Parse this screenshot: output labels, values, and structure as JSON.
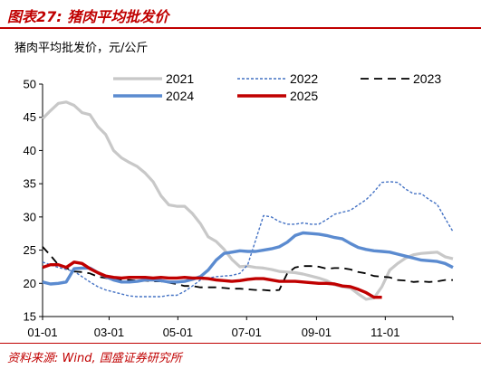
{
  "header": {
    "title": "图表27:  猪肉平均批发价"
  },
  "footer": {
    "source": "资料来源: Wind, 国盛证券研究所"
  },
  "chart_data": {
    "type": "line",
    "unit_label": "猪肉平均批发价，元/公斤",
    "x_tick_labels": [
      "01-01",
      "03-01",
      "05-01",
      "07-01",
      "09-01",
      "11-01"
    ],
    "y_ticks": [
      15,
      20,
      25,
      30,
      35,
      40,
      45,
      50
    ],
    "ylim": [
      15,
      50
    ],
    "x_domain": [
      "01-01",
      "12-31"
    ],
    "grid": false,
    "legend_position": "top",
    "series": [
      {
        "name": "2021",
        "color": "#c8c8c8",
        "style": "solid",
        "points": [
          [
            "01-01",
            44.8
          ],
          [
            "01-08",
            46.0
          ],
          [
            "01-15",
            47.1
          ],
          [
            "01-22",
            47.3
          ],
          [
            "01-29",
            46.8
          ],
          [
            "02-05",
            45.7
          ],
          [
            "02-12",
            45.4
          ],
          [
            "02-19",
            43.6
          ],
          [
            "02-26",
            42.4
          ],
          [
            "03-05",
            40.0
          ],
          [
            "03-12",
            38.9
          ],
          [
            "03-19",
            38.2
          ],
          [
            "03-26",
            37.6
          ],
          [
            "04-02",
            36.6
          ],
          [
            "04-09",
            35.3
          ],
          [
            "04-16",
            33.2
          ],
          [
            "04-23",
            31.8
          ],
          [
            "04-30",
            31.6
          ],
          [
            "05-07",
            31.6
          ],
          [
            "05-14",
            30.5
          ],
          [
            "05-21",
            29.0
          ],
          [
            "05-28",
            27.0
          ],
          [
            "06-04",
            26.3
          ],
          [
            "06-11",
            25.1
          ],
          [
            "06-18",
            23.6
          ],
          [
            "06-25",
            22.5
          ],
          [
            "07-02",
            22.6
          ],
          [
            "07-09",
            22.4
          ],
          [
            "07-16",
            22.3
          ],
          [
            "07-23",
            22.1
          ],
          [
            "07-30",
            21.8
          ],
          [
            "08-06",
            21.7
          ],
          [
            "08-13",
            21.6
          ],
          [
            "08-20",
            21.4
          ],
          [
            "08-27",
            21.1
          ],
          [
            "09-03",
            20.8
          ],
          [
            "09-10",
            20.4
          ],
          [
            "09-17",
            19.8
          ],
          [
            "09-24",
            19.5
          ],
          [
            "10-01",
            19.3
          ],
          [
            "10-08",
            18.4
          ],
          [
            "10-15",
            17.6
          ],
          [
            "10-22",
            17.8
          ],
          [
            "10-29",
            19.5
          ],
          [
            "11-05",
            22.0
          ],
          [
            "11-12",
            23.0
          ],
          [
            "11-19",
            23.8
          ],
          [
            "11-26",
            24.3
          ],
          [
            "12-03",
            24.5
          ],
          [
            "12-10",
            24.6
          ],
          [
            "12-17",
            24.7
          ],
          [
            "12-24",
            24.0
          ],
          [
            "12-31",
            23.7
          ]
        ]
      },
      {
        "name": "2022",
        "color": "#4472c4",
        "style": "dotted",
        "points": [
          [
            "01-01",
            23.2
          ],
          [
            "01-08",
            22.8
          ],
          [
            "01-15",
            22.4
          ],
          [
            "01-22",
            22.1
          ],
          [
            "01-29",
            21.8
          ],
          [
            "02-05",
            21.0
          ],
          [
            "02-12",
            20.2
          ],
          [
            "02-19",
            19.5
          ],
          [
            "02-26",
            19.0
          ],
          [
            "03-05",
            18.7
          ],
          [
            "03-12",
            18.4
          ],
          [
            "03-19",
            18.1
          ],
          [
            "03-26",
            18.0
          ],
          [
            "04-02",
            18.0
          ],
          [
            "04-09",
            18.0
          ],
          [
            "04-16",
            18.0
          ],
          [
            "04-23",
            18.2
          ],
          [
            "04-30",
            18.2
          ],
          [
            "05-07",
            18.8
          ],
          [
            "05-14",
            19.6
          ],
          [
            "05-21",
            20.5
          ],
          [
            "05-28",
            20.8
          ],
          [
            "06-04",
            21.0
          ],
          [
            "06-11",
            21.1
          ],
          [
            "06-18",
            21.2
          ],
          [
            "06-25",
            21.5
          ],
          [
            "07-02",
            22.8
          ],
          [
            "07-09",
            26.5
          ],
          [
            "07-16",
            30.2
          ],
          [
            "07-23",
            30.0
          ],
          [
            "07-30",
            29.3
          ],
          [
            "08-06",
            28.9
          ],
          [
            "08-13",
            28.9
          ],
          [
            "08-20",
            29.1
          ],
          [
            "08-27",
            28.9
          ],
          [
            "09-03",
            28.9
          ],
          [
            "09-10",
            29.6
          ],
          [
            "09-17",
            30.4
          ],
          [
            "09-24",
            30.7
          ],
          [
            "10-01",
            31.0
          ],
          [
            "10-08",
            31.8
          ],
          [
            "10-15",
            32.6
          ],
          [
            "10-22",
            33.8
          ],
          [
            "10-29",
            35.2
          ],
          [
            "11-05",
            35.3
          ],
          [
            "11-12",
            35.2
          ],
          [
            "11-19",
            34.2
          ],
          [
            "11-26",
            33.5
          ],
          [
            "12-03",
            33.5
          ],
          [
            "12-10",
            32.6
          ],
          [
            "12-17",
            31.9
          ],
          [
            "12-24",
            29.8
          ],
          [
            "12-31",
            27.8
          ]
        ]
      },
      {
        "name": "2023",
        "color": "#000000",
        "style": "dashed",
        "points": [
          [
            "01-01",
            25.5
          ],
          [
            "01-08",
            24.2
          ],
          [
            "01-15",
            22.8
          ],
          [
            "01-22",
            22.3
          ],
          [
            "01-29",
            21.8
          ],
          [
            "02-05",
            21.7
          ],
          [
            "02-12",
            21.5
          ],
          [
            "02-19",
            21.0
          ],
          [
            "02-26",
            20.8
          ],
          [
            "03-05",
            20.6
          ],
          [
            "03-12",
            20.5
          ],
          [
            "03-19",
            20.5
          ],
          [
            "03-26",
            20.4
          ],
          [
            "04-02",
            20.4
          ],
          [
            "04-09",
            20.3
          ],
          [
            "04-16",
            20.3
          ],
          [
            "04-23",
            20.1
          ],
          [
            "04-30",
            19.9
          ],
          [
            "05-07",
            19.6
          ],
          [
            "05-14",
            19.6
          ],
          [
            "05-21",
            19.4
          ],
          [
            "05-28",
            19.4
          ],
          [
            "06-04",
            19.4
          ],
          [
            "06-11",
            19.3
          ],
          [
            "06-18",
            19.2
          ],
          [
            "06-25",
            19.2
          ],
          [
            "07-02",
            19.1
          ],
          [
            "07-09",
            19.0
          ],
          [
            "07-16",
            19.0
          ],
          [
            "07-23",
            18.9
          ],
          [
            "07-30",
            19.0
          ],
          [
            "08-06",
            21.5
          ],
          [
            "08-13",
            22.4
          ],
          [
            "08-20",
            22.6
          ],
          [
            "08-27",
            22.6
          ],
          [
            "09-03",
            22.5
          ],
          [
            "09-10",
            22.2
          ],
          [
            "09-17",
            22.3
          ],
          [
            "09-24",
            22.3
          ],
          [
            "10-01",
            22.1
          ],
          [
            "10-08",
            21.7
          ],
          [
            "10-15",
            21.5
          ],
          [
            "10-22",
            21.1
          ],
          [
            "10-29",
            21.0
          ],
          [
            "11-05",
            20.9
          ],
          [
            "11-12",
            20.5
          ],
          [
            "11-19",
            20.4
          ],
          [
            "11-26",
            20.2
          ],
          [
            "12-03",
            20.3
          ],
          [
            "12-10",
            20.2
          ],
          [
            "12-17",
            20.3
          ],
          [
            "12-24",
            20.5
          ],
          [
            "12-31",
            20.5
          ]
        ]
      },
      {
        "name": "2024",
        "color": "#5b8bd0",
        "style": "solid",
        "points": [
          [
            "01-01",
            20.2
          ],
          [
            "01-08",
            19.9
          ],
          [
            "01-15",
            20.0
          ],
          [
            "01-22",
            20.2
          ],
          [
            "01-29",
            22.2
          ],
          [
            "02-05",
            22.3
          ],
          [
            "02-12",
            22.3
          ],
          [
            "02-19",
            21.6
          ],
          [
            "02-26",
            21.0
          ],
          [
            "03-05",
            20.5
          ],
          [
            "03-12",
            20.2
          ],
          [
            "03-19",
            20.2
          ],
          [
            "03-26",
            20.3
          ],
          [
            "04-02",
            20.5
          ],
          [
            "04-09",
            20.5
          ],
          [
            "04-16",
            20.4
          ],
          [
            "04-23",
            20.2
          ],
          [
            "04-30",
            20.2
          ],
          [
            "05-07",
            20.3
          ],
          [
            "05-14",
            20.6
          ],
          [
            "05-21",
            21.0
          ],
          [
            "05-28",
            22.0
          ],
          [
            "06-04",
            23.5
          ],
          [
            "06-11",
            24.5
          ],
          [
            "06-18",
            24.7
          ],
          [
            "06-25",
            24.9
          ],
          [
            "07-02",
            24.8
          ],
          [
            "07-09",
            24.8
          ],
          [
            "07-16",
            25.0
          ],
          [
            "07-23",
            25.2
          ],
          [
            "07-30",
            25.5
          ],
          [
            "08-06",
            26.2
          ],
          [
            "08-13",
            27.2
          ],
          [
            "08-20",
            27.6
          ],
          [
            "08-27",
            27.5
          ],
          [
            "09-03",
            27.4
          ],
          [
            "09-10",
            27.2
          ],
          [
            "09-17",
            26.9
          ],
          [
            "09-24",
            26.7
          ],
          [
            "10-01",
            26.0
          ],
          [
            "10-08",
            25.4
          ],
          [
            "10-15",
            25.1
          ],
          [
            "10-22",
            24.9
          ],
          [
            "10-29",
            24.8
          ],
          [
            "11-05",
            24.7
          ],
          [
            "11-12",
            24.4
          ],
          [
            "11-19",
            24.1
          ],
          [
            "11-26",
            23.8
          ],
          [
            "12-03",
            23.5
          ],
          [
            "12-10",
            23.4
          ],
          [
            "12-17",
            23.3
          ],
          [
            "12-24",
            23.0
          ],
          [
            "12-31",
            22.4
          ]
        ]
      },
      {
        "name": "2025",
        "color": "#c00000",
        "style": "solid",
        "points": [
          [
            "01-01",
            22.4
          ],
          [
            "01-08",
            22.8
          ],
          [
            "01-15",
            22.8
          ],
          [
            "01-22",
            22.4
          ],
          [
            "01-29",
            23.2
          ],
          [
            "02-05",
            23.0
          ],
          [
            "02-12",
            22.2
          ],
          [
            "02-19",
            21.6
          ],
          [
            "02-26",
            21.1
          ],
          [
            "03-05",
            20.9
          ],
          [
            "03-12",
            20.8
          ],
          [
            "03-19",
            20.9
          ],
          [
            "03-26",
            20.9
          ],
          [
            "04-02",
            20.9
          ],
          [
            "04-09",
            20.8
          ],
          [
            "04-16",
            20.9
          ],
          [
            "04-23",
            20.8
          ],
          [
            "04-30",
            20.8
          ],
          [
            "05-07",
            20.9
          ],
          [
            "05-14",
            20.8
          ],
          [
            "05-21",
            20.8
          ],
          [
            "05-28",
            20.7
          ],
          [
            "06-04",
            20.5
          ],
          [
            "06-11",
            20.4
          ],
          [
            "06-18",
            20.3
          ],
          [
            "06-25",
            20.4
          ],
          [
            "07-02",
            20.6
          ],
          [
            "07-09",
            20.7
          ],
          [
            "07-16",
            20.7
          ],
          [
            "07-23",
            20.5
          ],
          [
            "07-30",
            20.3
          ],
          [
            "08-06",
            20.3
          ],
          [
            "08-13",
            20.3
          ],
          [
            "08-20",
            20.2
          ],
          [
            "08-27",
            20.1
          ],
          [
            "09-03",
            20.0
          ],
          [
            "09-10",
            20.0
          ],
          [
            "09-17",
            19.9
          ],
          [
            "09-24",
            19.6
          ],
          [
            "10-01",
            19.5
          ],
          [
            "10-08",
            19.1
          ],
          [
            "10-15",
            18.6
          ],
          [
            "10-22",
            17.9
          ],
          [
            "10-29",
            17.9
          ]
        ]
      }
    ]
  }
}
